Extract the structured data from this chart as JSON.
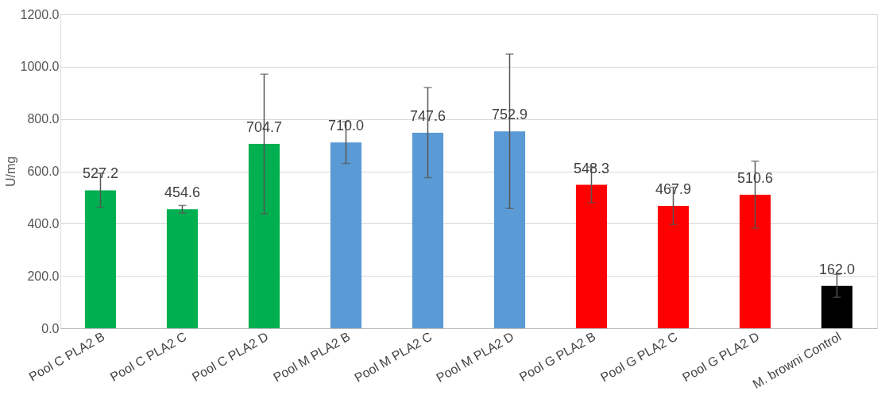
{
  "chart_data": {
    "type": "bar",
    "ylabel": "U/mg",
    "categories": [
      "Pool C  PLA2 B",
      "Pool C  PLA2 C",
      "Pool C  PLA2 D",
      "Pool M  PLA2 B",
      "Pool M  PLA2 C",
      "Pool M  PLA2 D",
      "Pool G  PLA2 B",
      "Pool G  PLA2 C",
      "Pool G  PLA2 D",
      "M. browni Control"
    ],
    "values": [
      527.2,
      454.6,
      704.7,
      710.0,
      747.6,
      752.9,
      548.3,
      467.9,
      510.6,
      162.0
    ],
    "colors": [
      "#00b050",
      "#00b050",
      "#00b050",
      "#5b9bd5",
      "#5b9bd5",
      "#5b9bd5",
      "#ff0000",
      "#ff0000",
      "#ff0000",
      "#000000"
    ],
    "errors": [
      65,
      15,
      267,
      80,
      172,
      295,
      68,
      71,
      128,
      44
    ],
    "value_labels": [
      "527.2",
      "454.6",
      "704.7",
      "710.0",
      "747.6",
      "752.9",
      "548.3",
      "467.9",
      "510.6",
      "162.0"
    ],
    "ylim": [
      0,
      1200
    ],
    "yticks": [
      {
        "value": 0,
        "label": "0.0"
      },
      {
        "value": 200,
        "label": "200.0"
      },
      {
        "value": 400,
        "label": "400.0"
      },
      {
        "value": 600,
        "label": "600.0"
      },
      {
        "value": 800,
        "label": "800.0"
      },
      {
        "value": 1000,
        "label": "1000.0"
      },
      {
        "value": 1200,
        "label": "1200.0"
      }
    ],
    "grid": "y"
  }
}
